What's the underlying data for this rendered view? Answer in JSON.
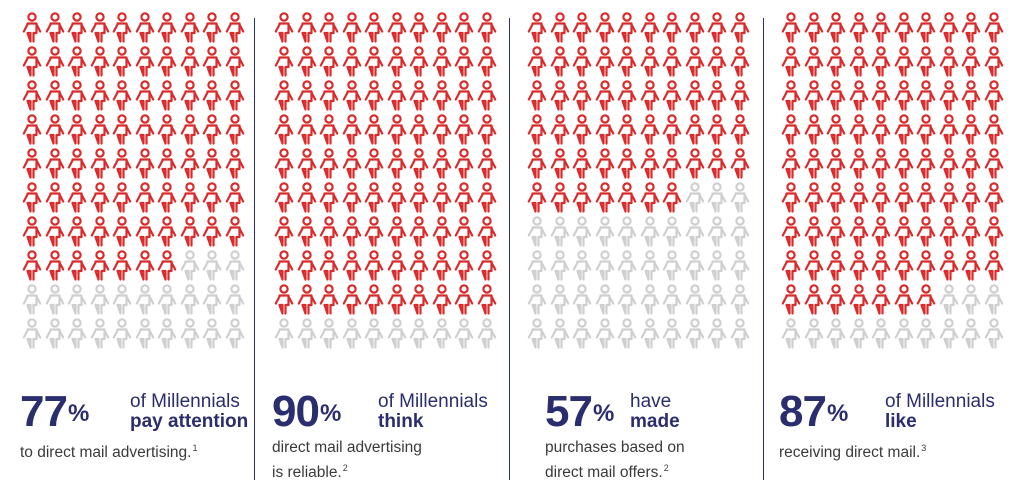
{
  "colors": {
    "highlight": "#d92b2b",
    "inactive": "#cfcfcf",
    "text_primary": "#2a2d6e",
    "text_secondary": "#3a3a3a"
  },
  "chart_data": [
    {
      "type": "waffle",
      "total": 100,
      "value": 77,
      "unit": "%",
      "text": {
        "number": "77",
        "pct": "%",
        "line1": "of Millennials",
        "line2": "pay attention",
        "desc": "to direct mail advertising.",
        "sup": "1"
      }
    },
    {
      "type": "waffle",
      "total": 100,
      "value": 90,
      "unit": "%",
      "text": {
        "number": "90",
        "pct": "%",
        "line1": "of Millennials",
        "line2": "think",
        "desc": "direct mail advertising\nis reliable.",
        "sup": "2"
      }
    },
    {
      "type": "waffle",
      "total": 100,
      "value": 57,
      "unit": "%",
      "text": {
        "number": "57",
        "pct": "%",
        "line1": "have",
        "line2": "made",
        "desc": "purchases based on\ndirect mail offers.",
        "sup": "2"
      }
    },
    {
      "type": "waffle",
      "total": 100,
      "value": 87,
      "unit": "%",
      "text": {
        "number": "87",
        "pct": "%",
        "line1": "of Millennials",
        "line2": "like",
        "desc": "receiving direct mail.",
        "sup": "3"
      }
    }
  ]
}
